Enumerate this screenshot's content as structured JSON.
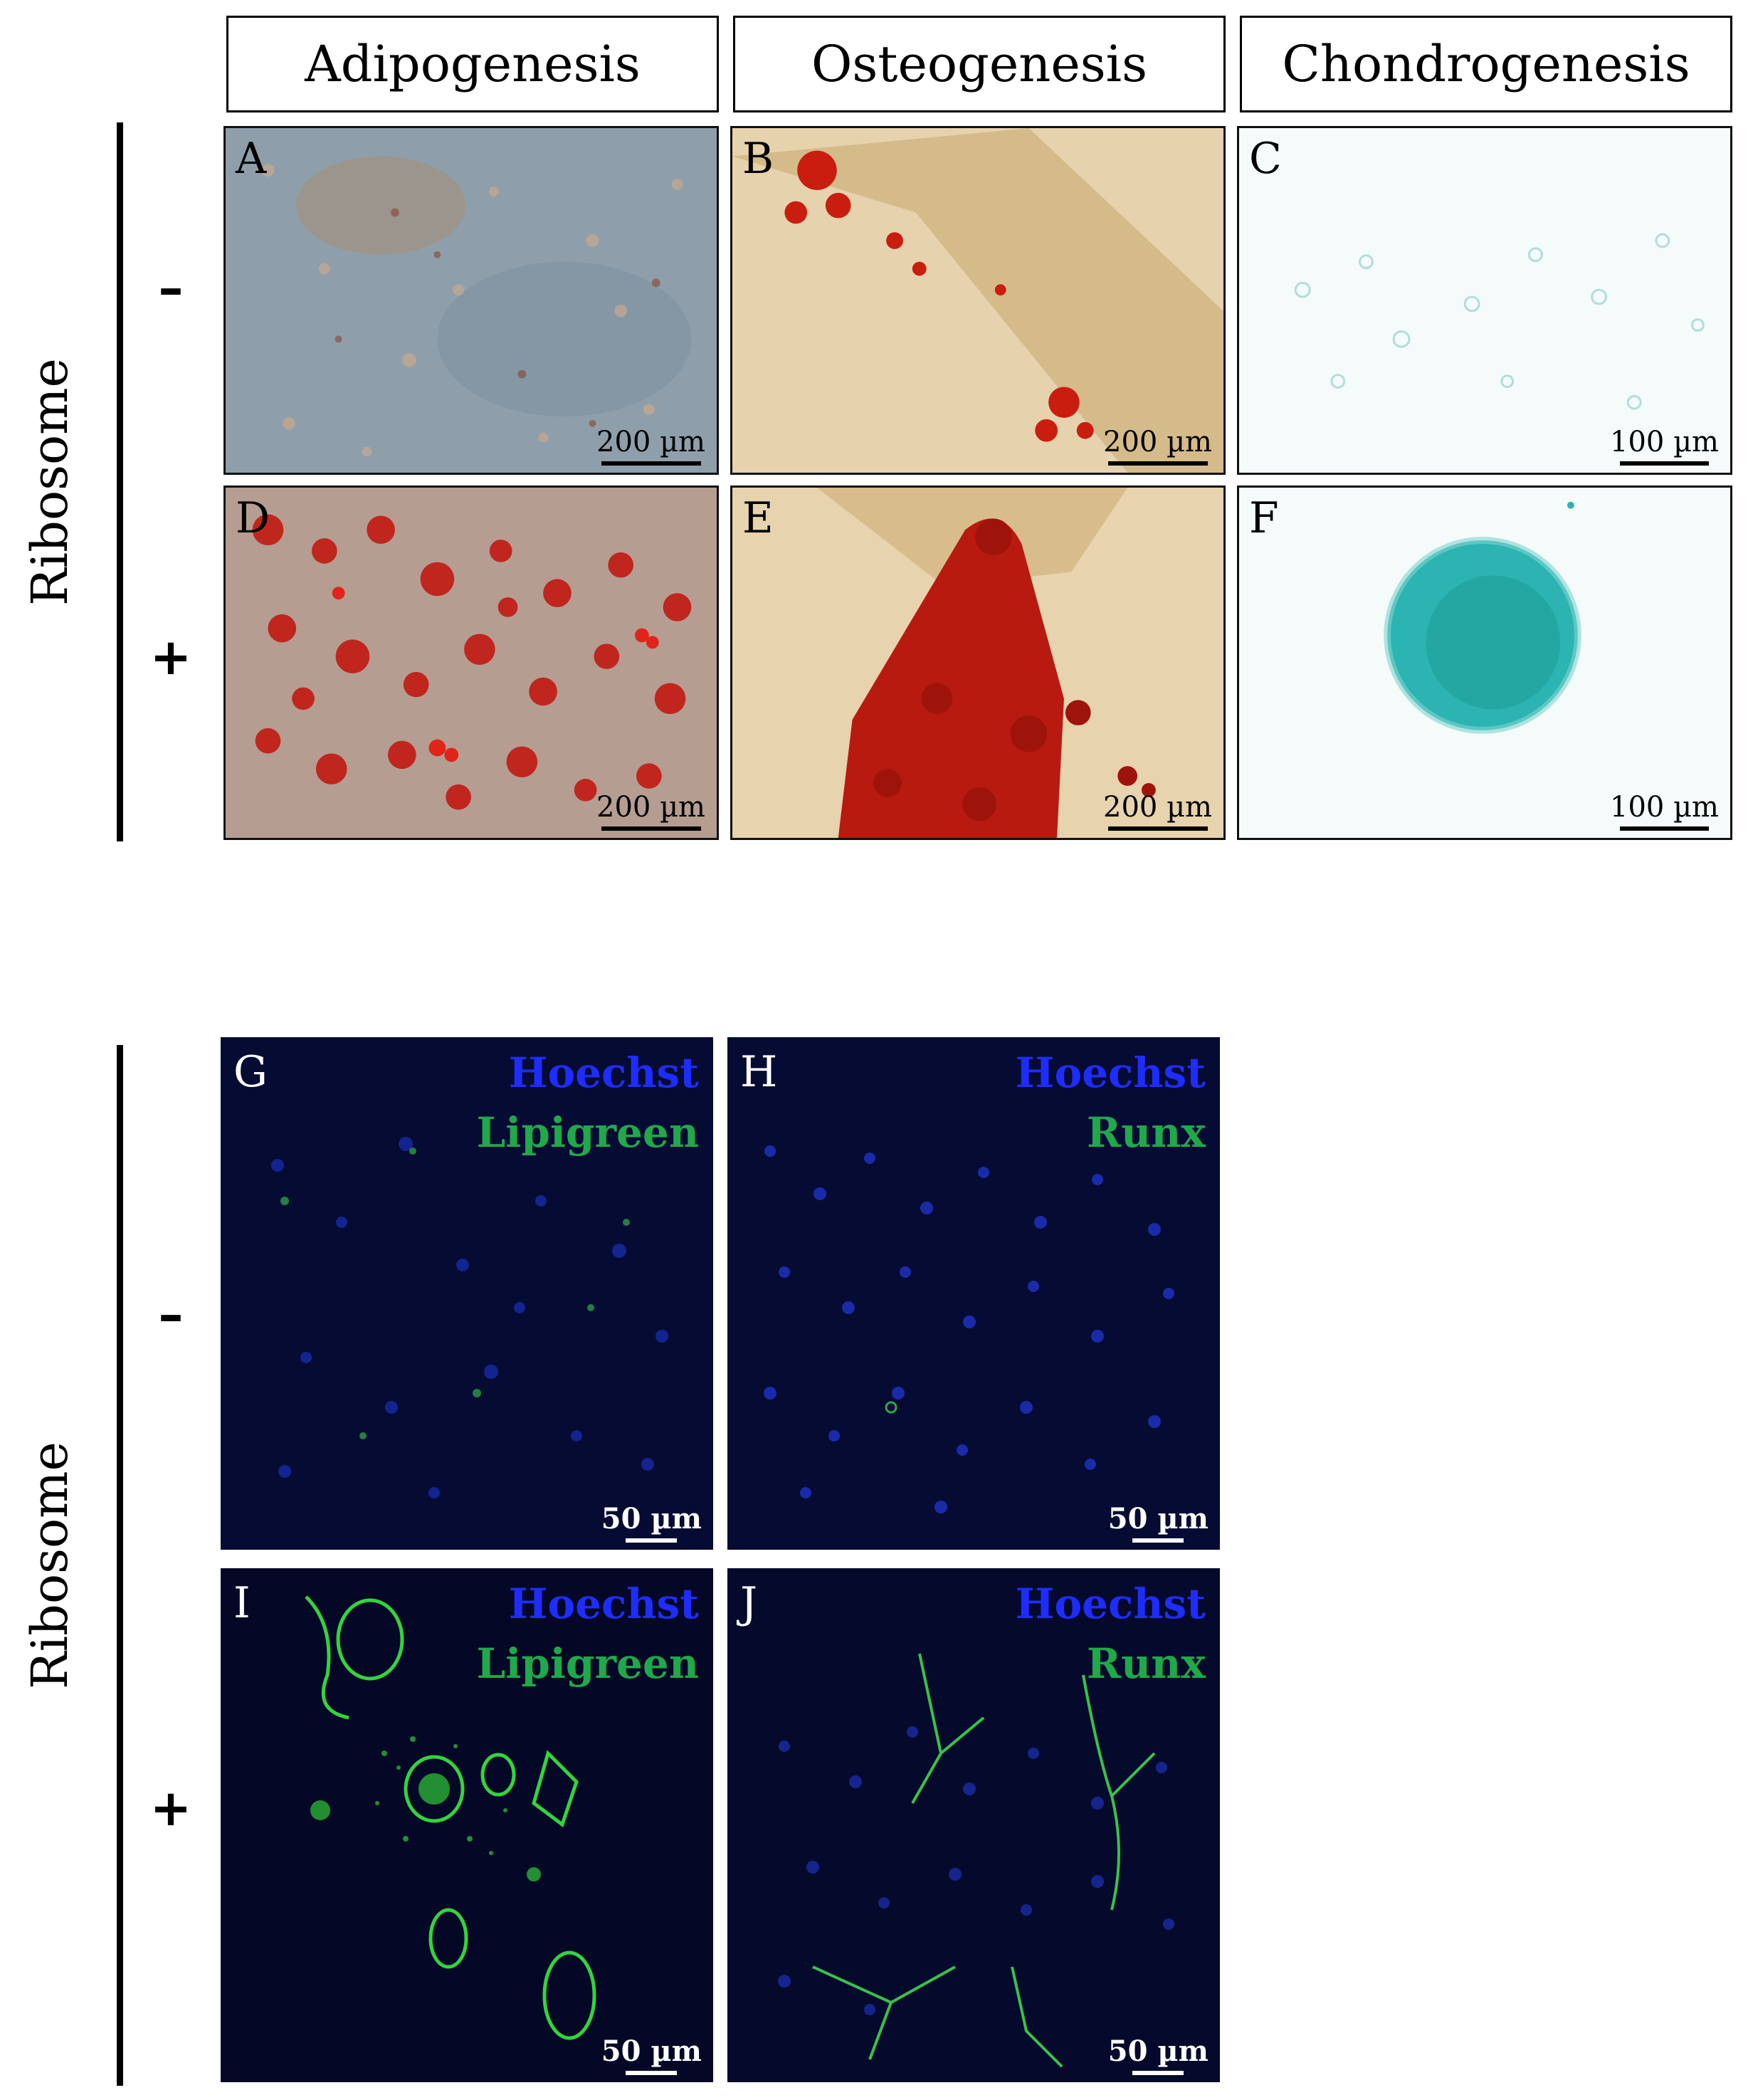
{
  "columns": {
    "adipo": "Adipogenesis",
    "osteo": "Osteogenesis",
    "chondro": "Chondrogenesis"
  },
  "side_label": "Ribosome",
  "signs": {
    "minus": "–",
    "plus": "+"
  },
  "panels": {
    "A": {
      "letter": "A",
      "scale": "200 µm"
    },
    "B": {
      "letter": "B",
      "scale": "200 µm"
    },
    "C": {
      "letter": "C",
      "scale": "100 µm"
    },
    "D": {
      "letter": "D",
      "scale": "200 µm"
    },
    "E": {
      "letter": "E",
      "scale": "200 µm"
    },
    "F": {
      "letter": "F",
      "scale": "100 µm"
    },
    "G": {
      "letter": "G",
      "scale": "50 µm",
      "stain1": "Hoechst",
      "stain2": "Lipigreen"
    },
    "H": {
      "letter": "H",
      "scale": "50 µm",
      "stain1": "Hoechst",
      "stain2": "Runx"
    },
    "I": {
      "letter": "I",
      "scale": "50 µm",
      "stain1": "Hoechst",
      "stain2": "Lipigreen"
    },
    "J": {
      "letter": "J",
      "scale": "50 µm",
      "stain1": "Hoechst",
      "stain2": "Runx"
    }
  },
  "colors": {
    "hoechst": "#1e2dff",
    "green_stain": "#1fa94a",
    "alizarin_red": "#c41a10",
    "alcian_blue": "#2ab3b0"
  }
}
